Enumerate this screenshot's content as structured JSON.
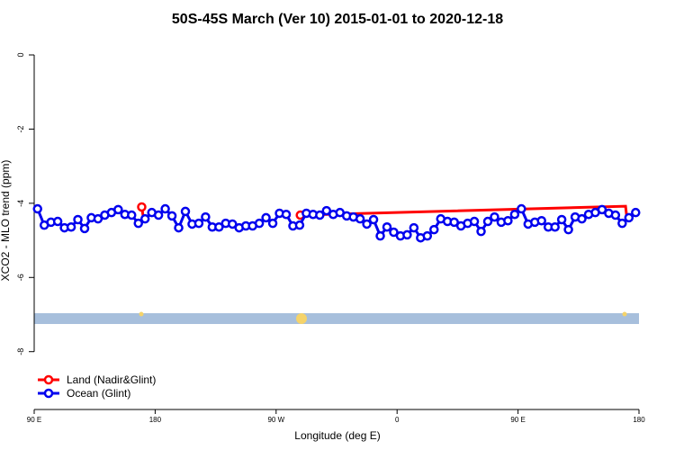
{
  "chart_data": {
    "type": "line",
    "title": "50S-45S March (Ver 10)   2015-01-01 to 2020-12-18",
    "x_label": "Longitude (deg E)",
    "y_label": "XCO2 - MLO trend (ppm)",
    "xlim": [
      90,
      540
    ],
    "xticks": [
      {
        "value": 90,
        "label": "90 E"
      },
      {
        "value": 180,
        "label": "180"
      },
      {
        "value": 270,
        "label": "90 W"
      },
      {
        "value": 360,
        "label": "0"
      },
      {
        "value": 450,
        "label": "90 E"
      },
      {
        "value": 540,
        "label": "180"
      }
    ],
    "ylim": [
      -9.56,
      0.51
    ],
    "yticks": [
      0,
      -2,
      -4,
      -6,
      -8
    ],
    "legend": "bottom-left",
    "series": [
      {
        "name": "Land (Nadir&Glint)",
        "color": "#ff0000",
        "x": [
          170,
          171.5,
          230,
          288,
          530,
          531
        ],
        "values": [
          -4.1,
          -4.45,
          null,
          -4.32,
          -4.08,
          -4.4
        ]
      },
      {
        "name": "Ocean (Glint)",
        "color": "#0000ee",
        "x": [
          92.5,
          97.5,
          102.5,
          107.5,
          112.5,
          117.5,
          122.5,
          127.5,
          132.5,
          137.5,
          142.5,
          147.5,
          152.5,
          157.5,
          162.5,
          167.5,
          172.5,
          177.5,
          182.5,
          187.5,
          192.5,
          197.5,
          202.5,
          207.5,
          212.5,
          217.5,
          222.5,
          227.5,
          232.5,
          237.5,
          242.5,
          247.5,
          252.5,
          257.5,
          262.5,
          267.5,
          272.5,
          277.5,
          282.5,
          287.5,
          292.5,
          297.5,
          302.5,
          307.5,
          312.5,
          317.5,
          322.5,
          327.5,
          332.5,
          337.5,
          342.5,
          347.5,
          352.5,
          357.5,
          362.5,
          367.5,
          372.5,
          377.5,
          382.5,
          387.5,
          392.5,
          397.5,
          402.5,
          407.5,
          412.5,
          417.5,
          422.5,
          427.5,
          432.5,
          437.5,
          442.5,
          447.5,
          452.5,
          457.5,
          462.5,
          467.5,
          472.5,
          477.5,
          482.5,
          487.5,
          492.5,
          497.5,
          502.5,
          507.5,
          512.5,
          517.5,
          522.5,
          527.5,
          532.5,
          537.5
        ],
        "values": [
          -4.15,
          -4.59,
          -4.51,
          -4.49,
          -4.66,
          -4.64,
          -4.44,
          -4.68,
          -4.39,
          -4.42,
          -4.32,
          -4.25,
          -4.17,
          -4.3,
          -4.32,
          -4.54,
          -4.42,
          -4.25,
          -4.32,
          -4.15,
          -4.34,
          -4.66,
          -4.22,
          -4.56,
          -4.54,
          -4.37,
          -4.64,
          -4.64,
          -4.54,
          -4.56,
          -4.66,
          -4.61,
          -4.61,
          -4.54,
          -4.39,
          -4.54,
          -4.27,
          -4.3,
          -4.61,
          -4.59,
          -4.27,
          -4.3,
          -4.32,
          -4.2,
          -4.3,
          -4.25,
          -4.34,
          -4.37,
          -4.42,
          -4.56,
          -4.44,
          -4.88,
          -4.64,
          -4.78,
          -4.88,
          -4.85,
          -4.66,
          -4.93,
          -4.88,
          -4.71,
          -4.42,
          -4.49,
          -4.51,
          -4.61,
          -4.54,
          -4.49,
          -4.76,
          -4.49,
          -4.37,
          -4.51,
          -4.47,
          -4.3,
          -4.15,
          -4.56,
          -4.51,
          -4.47,
          -4.64,
          -4.64,
          -4.44,
          -4.71,
          -4.37,
          -4.42,
          -4.3,
          -4.25,
          -4.17,
          -4.27,
          -4.32,
          -4.54,
          -4.39,
          -4.25
        ]
      }
    ]
  }
}
